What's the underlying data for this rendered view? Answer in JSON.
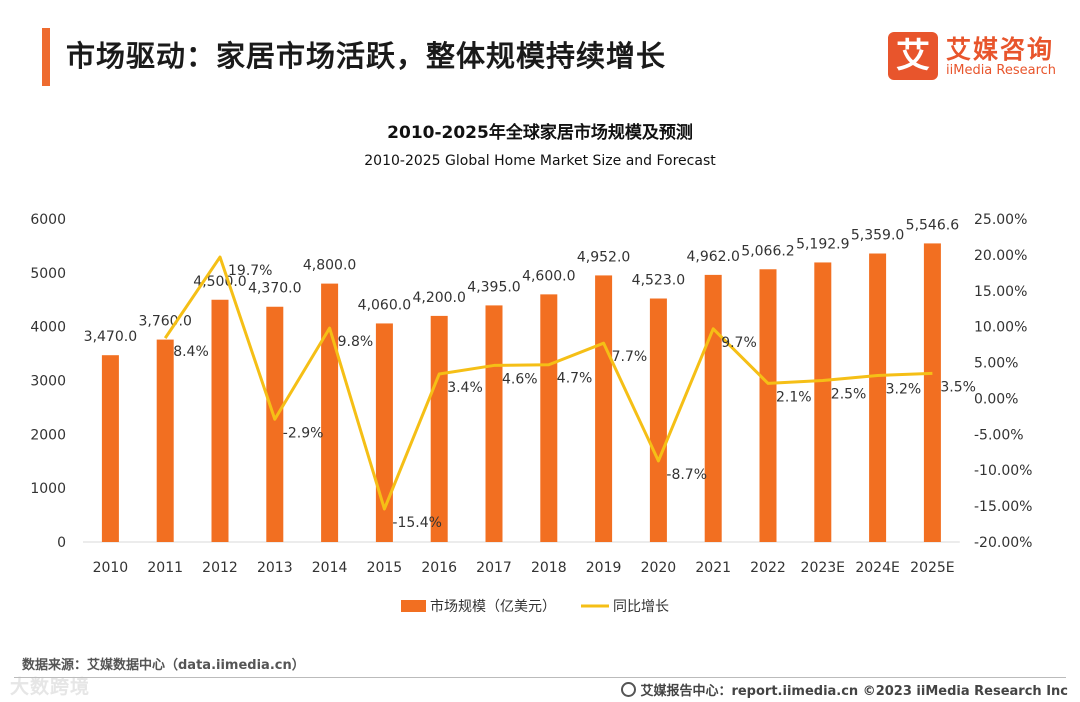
{
  "header": {
    "title": "市场驱动：家居市场活跃，整体规模持续增长",
    "logo_cn": "艾媒咨询",
    "logo_en": "iiMedia Research",
    "logo_mark": "艾"
  },
  "chart_data": {
    "type": "bar+line",
    "title": "2010-2025年全球家居市场规模及预测",
    "subtitle": "2010-2025 Global Home Market Size and Forecast",
    "categories": [
      "2010",
      "2011",
      "2012",
      "2013",
      "2014",
      "2015",
      "2016",
      "2017",
      "2018",
      "2019",
      "2020",
      "2021",
      "2022",
      "2023E",
      "2024E",
      "2025E"
    ],
    "series": [
      {
        "name": "市场规模（亿美元）",
        "type": "bar",
        "axis": "left",
        "color": "#f26f21",
        "values": [
          3470.0,
          3760.0,
          4500.0,
          4370.0,
          4800.0,
          4060.0,
          4200.0,
          4395.0,
          4600.0,
          4952.0,
          4523.0,
          4962.0,
          5066.2,
          5192.9,
          5359.0,
          5546.6
        ],
        "labels": [
          "3,470.0",
          "3,760.0",
          "4,500.0",
          "4,370.0",
          "4,800.0",
          "4,060.0",
          "4,200.0",
          "4,395.0",
          "4,600.0",
          "4,952.0",
          "4,523.0",
          "4,962.0",
          "5,066.2",
          "5,192.9",
          "5,359.0",
          "5,546.6"
        ]
      },
      {
        "name": "同比增长",
        "type": "line",
        "axis": "right",
        "color": "#f5bf16",
        "values": [
          null,
          8.4,
          19.7,
          -2.9,
          9.8,
          -15.4,
          3.4,
          4.6,
          4.7,
          7.7,
          -8.7,
          9.7,
          2.1,
          2.5,
          3.2,
          3.5
        ],
        "labels": [
          "",
          "8.4%",
          "19.7%",
          "-2.9%",
          "9.8%",
          "-15.4%",
          "3.4%",
          "4.6%",
          "4.7%",
          "7.7%",
          "-8.7%",
          "9.7%",
          "2.1%",
          "2.5%",
          "3.2%",
          "3.5%"
        ]
      }
    ],
    "y_left": {
      "min": 0,
      "max": 6000,
      "ticks": [
        "0",
        "1000",
        "2000",
        "3000",
        "4000",
        "5000",
        "6000"
      ]
    },
    "y_right": {
      "min": -20,
      "max": 25,
      "ticks": [
        "-20.00%",
        "-15.00%",
        "-10.00%",
        "-5.00%",
        "0.00%",
        "5.00%",
        "10.00%",
        "15.00%",
        "20.00%",
        "25.00%"
      ]
    },
    "grid": false,
    "legend_position": "bottom"
  },
  "footer": {
    "source": "数据来源：艾媒数据中心（data.iimedia.cn）",
    "report": "艾媒报告中心：report.iimedia.cn  ©2023  iiMedia Research  Inc",
    "watermark": "大数跨境"
  }
}
